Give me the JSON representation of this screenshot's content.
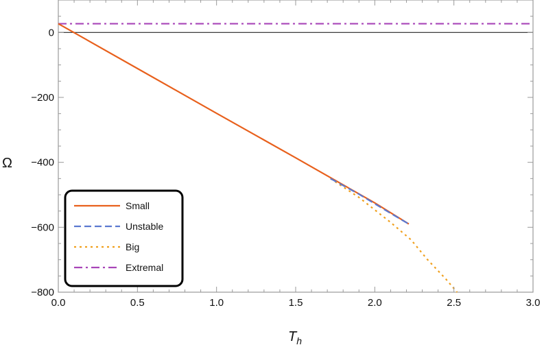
{
  "chart_data": {
    "type": "line",
    "title": "",
    "xlabel": "T_h",
    "ylabel": "Ω",
    "xlim": [
      0,
      3.0
    ],
    "ylim": [
      -800,
      100
    ],
    "x_ticks": [
      "0.0",
      "0.5",
      "1.0",
      "1.5",
      "2.0",
      "2.5",
      "3.0"
    ],
    "y_ticks": [
      "0",
      "-200",
      "-400",
      "-600",
      "-800"
    ],
    "grid": false,
    "legend_position": "lower-left",
    "series": [
      {
        "name": "Small",
        "style": "solid",
        "color": "#e8601c",
        "x": [
          0.0,
          0.5,
          1.0,
          1.5,
          2.0,
          2.215
        ],
        "y": [
          27,
          -111,
          -249,
          -386,
          -525,
          -590
        ]
      },
      {
        "name": "Unstable",
        "style": "dashed",
        "color": "#5b78d0",
        "x": [
          1.72,
          1.9,
          2.1,
          2.215
        ],
        "y": [
          -450,
          -498,
          -557,
          -590
        ]
      },
      {
        "name": "Big",
        "style": "dotted",
        "color": "#f0a01e",
        "x": [
          1.72,
          1.9,
          2.1,
          2.23,
          2.33,
          2.45,
          2.52
        ],
        "y": [
          -450,
          -508,
          -585,
          -639,
          -698,
          -760,
          -800
        ]
      },
      {
        "name": "Extremal",
        "style": "dashdot",
        "color": "#a845b8",
        "x": [
          0.0,
          3.0
        ],
        "y": [
          27,
          27
        ]
      }
    ]
  },
  "legend": {
    "items": [
      "Small",
      "Unstable",
      "Big",
      "Extremal"
    ]
  },
  "axes": {
    "xlabel_main": "T",
    "xlabel_sub": "h",
    "ylabel": "Ω"
  }
}
